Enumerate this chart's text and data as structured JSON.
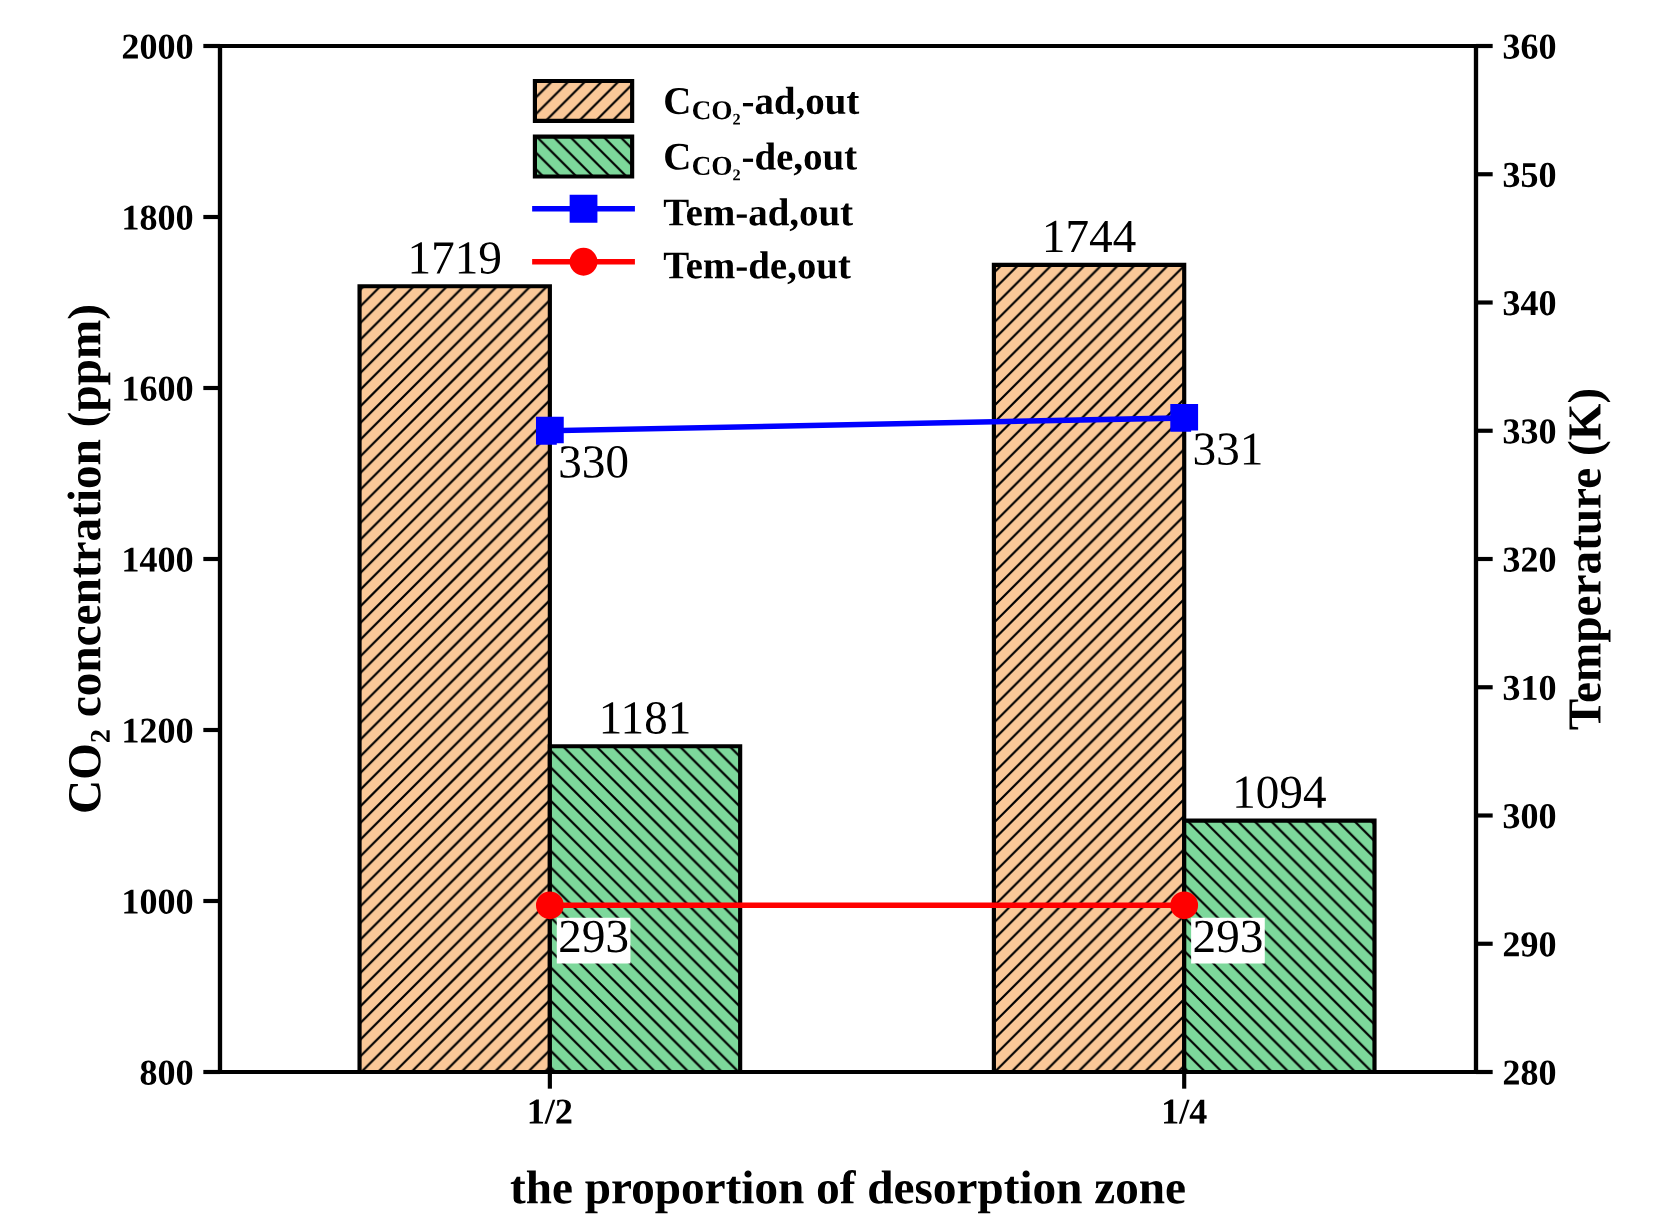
{
  "chart_data": {
    "type": "bar",
    "xlabel": "the proportion of desorption zone",
    "ylabel": "CO₂ concentration (ppm)",
    "y2label": "Temperature (K)",
    "categories": [
      "1/2",
      "1/4"
    ],
    "series": [
      {
        "name": "C$_{CO₂}$-ad,out",
        "color": "#fac898",
        "values": [
          1719,
          1744
        ]
      },
      {
        "name": "C$_{CO₂}$-de,out",
        "color": "#7dd89b",
        "values": [
          1181,
          1094
        ]
      },
      {
        "name": "Tem-ad,out",
        "type": "line",
        "axis": "y2",
        "color": "#0000ff",
        "marker": "square",
        "values": [
          330,
          331
        ]
      },
      {
        "name": "Tem-de,out",
        "type": "line",
        "axis": "y2",
        "color": "#ff0000",
        "marker": "circle",
        "values": [
          293,
          293
        ]
      }
    ],
    "ylim": [
      800,
      2000
    ],
    "yticks": [
      800,
      1000,
      1200,
      1400,
      1600,
      1800,
      2000
    ],
    "y2lim": [
      280,
      360
    ],
    "y2ticks": [
      280,
      290,
      300,
      310,
      320,
      330,
      340,
      350,
      360
    ],
    "data_labels": true,
    "legend": "top",
    "grid": false
  }
}
